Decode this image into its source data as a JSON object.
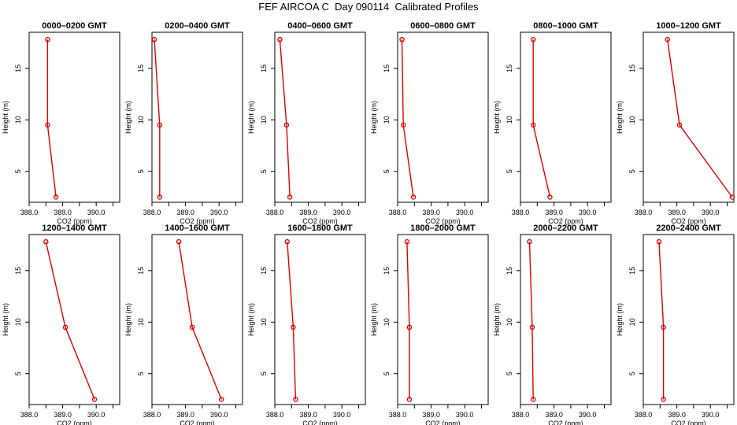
{
  "title": "FEF AIRCOA C  Day 090114  Calibrated Profiles",
  "chart_data": [
    {
      "type": "line",
      "title": "0000–0200 GMT",
      "xlabel": "CO2 (ppm)",
      "ylabel": "Height (m)",
      "xlim": [
        388.0,
        390.7
      ],
      "ylim": [
        2,
        18.5
      ],
      "xticks": [
        "388.0",
        "389.0",
        "390.0"
      ],
      "yticks": [
        "5",
        "10",
        "15"
      ],
      "x_tick_values": [
        388,
        388.5,
        389,
        389.5,
        390,
        390.5
      ],
      "y_tick_values": [
        5,
        10,
        15
      ],
      "grid": false,
      "series": [
        {
          "color": "#e00000",
          "values": [
            [
              388.55,
              17.8
            ],
            [
              388.55,
              9.5
            ],
            [
              388.8,
              2.5
            ]
          ]
        }
      ]
    },
    {
      "type": "line",
      "title": "0200–0400 GMT",
      "xlabel": "CO2 (ppm)",
      "ylabel": "Height (m)",
      "xlim": [
        388.0,
        390.7
      ],
      "ylim": [
        2,
        18.5
      ],
      "xticks": [
        "388.0",
        "389.0",
        "390.0"
      ],
      "yticks": [
        "5",
        "10",
        "15"
      ],
      "x_tick_values": [
        388,
        388.5,
        389,
        389.5,
        390,
        390.5
      ],
      "y_tick_values": [
        5,
        10,
        15
      ],
      "grid": false,
      "series": [
        {
          "color": "#e00000",
          "values": [
            [
              388.07,
              17.8
            ],
            [
              388.23,
              9.5
            ],
            [
              388.23,
              2.5
            ]
          ]
        }
      ]
    },
    {
      "type": "line",
      "title": "0400–0600 GMT",
      "xlabel": "CO2 (ppm)",
      "ylabel": "Height (m)",
      "xlim": [
        388.0,
        390.7
      ],
      "ylim": [
        2,
        18.5
      ],
      "xticks": [
        "388.0",
        "389.0",
        "390.0"
      ],
      "yticks": [
        "5",
        "10",
        "15"
      ],
      "x_tick_values": [
        388,
        388.5,
        389,
        389.5,
        390,
        390.5
      ],
      "y_tick_values": [
        5,
        10,
        15
      ],
      "grid": false,
      "series": [
        {
          "color": "#e00000",
          "values": [
            [
              388.15,
              17.8
            ],
            [
              388.35,
              9.5
            ],
            [
              388.45,
              2.5
            ]
          ]
        }
      ]
    },
    {
      "type": "line",
      "title": "0600–0800 GMT",
      "xlabel": "CO2 (ppm)",
      "ylabel": "Height (m)",
      "xlim": [
        388.0,
        390.7
      ],
      "ylim": [
        2,
        18.5
      ],
      "xticks": [
        "388.0",
        "389.0",
        "390.0"
      ],
      "yticks": [
        "5",
        "10",
        "15"
      ],
      "x_tick_values": [
        388,
        388.5,
        389,
        389.5,
        390,
        390.5
      ],
      "y_tick_values": [
        5,
        10,
        15
      ],
      "grid": false,
      "series": [
        {
          "color": "#e00000",
          "values": [
            [
              388.13,
              17.8
            ],
            [
              388.17,
              9.5
            ],
            [
              388.47,
              2.5
            ]
          ]
        }
      ]
    },
    {
      "type": "line",
      "title": "0800–1000 GMT",
      "xlabel": "CO2 (ppm)",
      "ylabel": "Height (m)",
      "xlim": [
        388.0,
        390.7
      ],
      "ylim": [
        2,
        18.5
      ],
      "xticks": [
        "388.0",
        "389.0",
        "390.0"
      ],
      "yticks": [
        "5",
        "10",
        "15"
      ],
      "x_tick_values": [
        388,
        388.5,
        389,
        389.5,
        390,
        390.5
      ],
      "y_tick_values": [
        5,
        10,
        15
      ],
      "grid": false,
      "series": [
        {
          "color": "#e00000",
          "values": [
            [
              388.38,
              17.8
            ],
            [
              388.38,
              9.5
            ],
            [
              388.88,
              2.5
            ]
          ]
        }
      ]
    },
    {
      "type": "line",
      "title": "1000–1200 GMT",
      "xlabel": "CO2 (ppm)",
      "ylabel": "Height (m)",
      "xlim": [
        388.0,
        390.7
      ],
      "ylim": [
        2,
        18.5
      ],
      "xticks": [
        "388.0",
        "389.0",
        "390.0"
      ],
      "yticks": [
        "5",
        "10",
        "15"
      ],
      "x_tick_values": [
        388,
        388.5,
        389,
        389.5,
        390,
        390.5
      ],
      "y_tick_values": [
        5,
        10,
        15
      ],
      "grid": false,
      "series": [
        {
          "color": "#e00000",
          "values": [
            [
              388.72,
              17.8
            ],
            [
              389.08,
              9.5
            ],
            [
              390.65,
              2.5
            ]
          ]
        }
      ]
    },
    {
      "type": "line",
      "title": "1200–1400 GMT",
      "xlabel": "CO2 (ppm)",
      "ylabel": "Height (m)",
      "xlim": [
        388.0,
        390.7
      ],
      "ylim": [
        2,
        18.5
      ],
      "xticks": [
        "388.0",
        "389.0",
        "390.0"
      ],
      "yticks": [
        "5",
        "10",
        "15"
      ],
      "x_tick_values": [
        388,
        388.5,
        389,
        389.5,
        390,
        390.5
      ],
      "y_tick_values": [
        5,
        10,
        15
      ],
      "grid": false,
      "series": [
        {
          "color": "#e00000",
          "values": [
            [
              388.5,
              17.8
            ],
            [
              389.08,
              9.5
            ],
            [
              389.95,
              2.5
            ]
          ]
        }
      ]
    },
    {
      "type": "line",
      "title": "1400–1600 GMT",
      "xlabel": "CO2 (ppm)",
      "ylabel": "Height (m)",
      "xlim": [
        388.0,
        390.7
      ],
      "ylim": [
        2,
        18.5
      ],
      "xticks": [
        "388.0",
        "389.0",
        "390.0"
      ],
      "yticks": [
        "5",
        "10",
        "15"
      ],
      "x_tick_values": [
        388,
        388.5,
        389,
        389.5,
        390,
        390.5
      ],
      "y_tick_values": [
        5,
        10,
        15
      ],
      "grid": false,
      "series": [
        {
          "color": "#e00000",
          "values": [
            [
              388.8,
              17.8
            ],
            [
              389.2,
              9.5
            ],
            [
              390.07,
              2.5
            ]
          ]
        }
      ]
    },
    {
      "type": "line",
      "title": "1600–1800 GMT",
      "xlabel": "CO2 (ppm)",
      "ylabel": "Height (m)",
      "xlim": [
        388.0,
        390.7
      ],
      "ylim": [
        2,
        18.5
      ],
      "xticks": [
        "388.0",
        "389.0",
        "390.0"
      ],
      "yticks": [
        "5",
        "10",
        "15"
      ],
      "x_tick_values": [
        388,
        388.5,
        389,
        389.5,
        390,
        390.5
      ],
      "y_tick_values": [
        5,
        10,
        15
      ],
      "grid": false,
      "series": [
        {
          "color": "#e00000",
          "values": [
            [
              388.37,
              17.8
            ],
            [
              388.55,
              9.5
            ],
            [
              388.62,
              2.5
            ]
          ]
        }
      ]
    },
    {
      "type": "line",
      "title": "1800–2000 GMT",
      "xlabel": "CO2 (ppm)",
      "ylabel": "Height (m)",
      "xlim": [
        388.0,
        390.7
      ],
      "ylim": [
        2,
        18.5
      ],
      "xticks": [
        "388.0",
        "389.0",
        "390.0"
      ],
      "yticks": [
        "5",
        "10",
        "15"
      ],
      "x_tick_values": [
        388,
        388.5,
        389,
        389.5,
        390,
        390.5
      ],
      "y_tick_values": [
        5,
        10,
        15
      ],
      "grid": false,
      "series": [
        {
          "color": "#e00000",
          "values": [
            [
              388.28,
              17.8
            ],
            [
              388.35,
              9.5
            ],
            [
              388.35,
              2.5
            ]
          ]
        }
      ]
    },
    {
      "type": "line",
      "title": "2000–2200 GMT",
      "xlabel": "CO2 (ppm)",
      "ylabel": "Height (m)",
      "xlim": [
        388.0,
        390.7
      ],
      "ylim": [
        2,
        18.5
      ],
      "xticks": [
        "388.0",
        "389.0",
        "390.0"
      ],
      "yticks": [
        "5",
        "10",
        "15"
      ],
      "x_tick_values": [
        388,
        388.5,
        389,
        389.5,
        390,
        390.5
      ],
      "y_tick_values": [
        5,
        10,
        15
      ],
      "grid": false,
      "series": [
        {
          "color": "#e00000",
          "values": [
            [
              388.27,
              17.8
            ],
            [
              388.35,
              9.5
            ],
            [
              388.38,
              2.5
            ]
          ]
        }
      ]
    },
    {
      "type": "line",
      "title": "2200–2400 GMT",
      "xlabel": "CO2 (ppm)",
      "ylabel": "Height (m)",
      "xlim": [
        388.0,
        390.7
      ],
      "ylim": [
        2,
        18.5
      ],
      "xticks": [
        "388.0",
        "389.0",
        "390.0"
      ],
      "yticks": [
        "5",
        "10",
        "15"
      ],
      "x_tick_values": [
        388,
        388.5,
        389,
        389.5,
        390,
        390.5
      ],
      "y_tick_values": [
        5,
        10,
        15
      ],
      "grid": false,
      "series": [
        {
          "color": "#e00000",
          "values": [
            [
              388.47,
              17.8
            ],
            [
              388.6,
              9.5
            ],
            [
              388.6,
              2.5
            ]
          ]
        }
      ]
    }
  ]
}
